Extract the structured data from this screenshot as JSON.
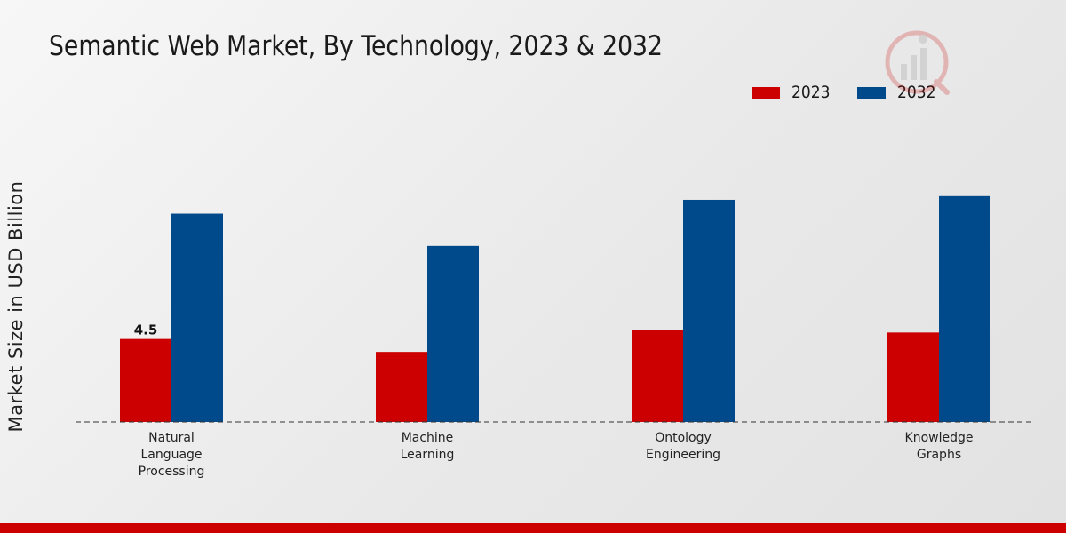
{
  "chart_data": {
    "type": "bar",
    "title": "Semantic Web Market, By Technology, 2023 & 2032",
    "xlabel": "",
    "ylabel": "Market Size in USD Billion",
    "categories": [
      [
        "Natural",
        "Language",
        "Processing"
      ],
      [
        "Machine",
        "Learning"
      ],
      [
        "Ontology",
        "Engineering"
      ],
      [
        "Knowledge",
        "Graphs"
      ]
    ],
    "series": [
      {
        "name": "2023",
        "color": "#cc0000",
        "values": [
          4.5,
          3.8,
          5.0,
          4.85
        ]
      },
      {
        "name": "2032",
        "color": "#004a8c",
        "values": [
          11.3,
          9.55,
          12.05,
          12.25
        ]
      }
    ],
    "data_labels": [
      {
        "series": 0,
        "index": 0,
        "text": "4.5"
      }
    ],
    "ylim": [
      0,
      20
    ],
    "grid": false,
    "legend": "top-right"
  }
}
